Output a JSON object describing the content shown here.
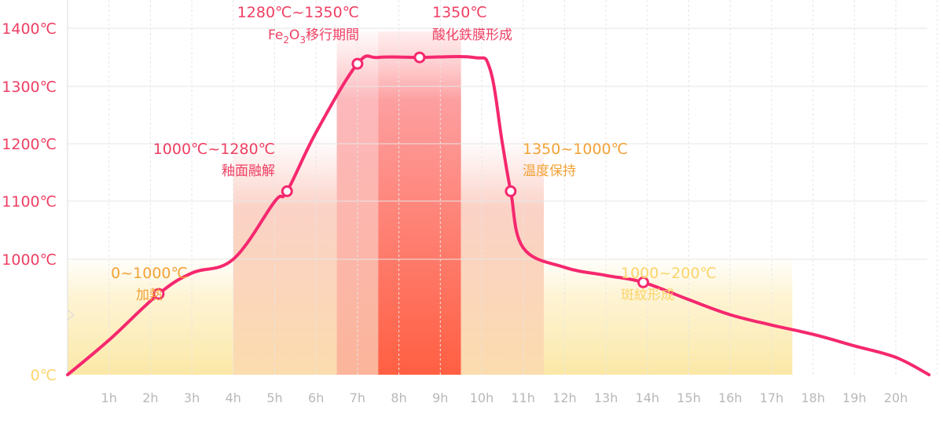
{
  "chart_data": {
    "type": "line",
    "title": "",
    "xlabel": "",
    "ylabel": "",
    "x_ticks": [
      "1h",
      "2h",
      "3h",
      "4h",
      "5h",
      "6h",
      "7h",
      "8h",
      "9h",
      "10h",
      "11h",
      "12h",
      "13h",
      "14h",
      "15h",
      "16h",
      "17h",
      "18h",
      "19h",
      "20h"
    ],
    "y_ticks": [
      "0℃",
      "1000℃",
      "1100℃",
      "1200℃",
      "1300℃",
      "1400℃"
    ],
    "x_range_hours": [
      0,
      20.8
    ],
    "axis_break": "between 0℃ and 1000℃",
    "grid": true,
    "series": [
      {
        "color": "#f5286e",
        "points": [
          [
            0,
            0
          ],
          [
            1,
            300
          ],
          [
            2.2,
            700
          ],
          [
            3,
            880
          ],
          [
            4,
            1000
          ],
          [
            5,
            1100
          ],
          [
            5.3,
            1118
          ],
          [
            6,
            1220
          ],
          [
            7,
            1339
          ],
          [
            7.5,
            1350
          ],
          [
            8.5,
            1350
          ],
          [
            9.8,
            1350
          ],
          [
            10.2,
            1330
          ],
          [
            10.5,
            1200
          ],
          [
            10.7,
            1118
          ],
          [
            11,
            1020
          ],
          [
            12,
            930
          ],
          [
            13,
            860
          ],
          [
            13.9,
            800
          ],
          [
            15,
            650
          ],
          [
            16,
            520
          ],
          [
            17,
            430
          ],
          [
            18,
            350
          ],
          [
            19,
            250
          ],
          [
            20,
            150
          ],
          [
            20.8,
            0
          ]
        ],
        "markers": [
          [
            2.2,
            700
          ],
          [
            5.3,
            1118
          ],
          [
            7.0,
            1339
          ],
          [
            8.5,
            1350
          ],
          [
            10.7,
            1118
          ],
          [
            13.9,
            800
          ]
        ]
      }
    ],
    "bands": [
      {
        "from": 0,
        "to": 4,
        "color": "#fdebb4"
      },
      {
        "from": 4,
        "to": 6.5,
        "color": "#fbc8a8"
      },
      {
        "from": 6.5,
        "to": 7.5,
        "color": "#fca2a8"
      },
      {
        "from": 7.5,
        "to": 9.5,
        "color": "#fe6446"
      },
      {
        "from": 9.5,
        "to": 11.5,
        "color": "#fbc8a8"
      },
      {
        "from": 11.5,
        "to": 17.5,
        "color": "#fdebb4"
      }
    ],
    "annotations": [
      {
        "line1": "0~1000℃",
        "line2": "加熱",
        "color": "#f2a236",
        "x": 2.2
      },
      {
        "line1": "1000℃~1280℃",
        "line2": "釉面融解",
        "color": "#ee3f63",
        "x": 5.3
      },
      {
        "line1": "1280℃~1350℃",
        "line2a": "Fe",
        "sub1": "2",
        "line2b": "O",
        "sub2": "3",
        "line2c": "移行期間",
        "color": "#ee3f63",
        "x": 7.0
      },
      {
        "line1": "1350℃",
        "line2": "酸化鉄膜形成",
        "color": "#ee3f63",
        "x": 8.5
      },
      {
        "line1": "1350~1000℃",
        "line2": "温度保持",
        "color": "#f2a236",
        "x": 10.7
      },
      {
        "line1": "1000~200℃",
        "line2": "斑紋形成",
        "color": "#fbd46a",
        "x": 13.9
      }
    ],
    "colors": {
      "curve": "#f5286e",
      "y_tick": "#ee3f63",
      "y_tick_zero": "#fbd46a",
      "x_tick": "#b8b8b8",
      "grid": "#e6e6e6"
    }
  }
}
